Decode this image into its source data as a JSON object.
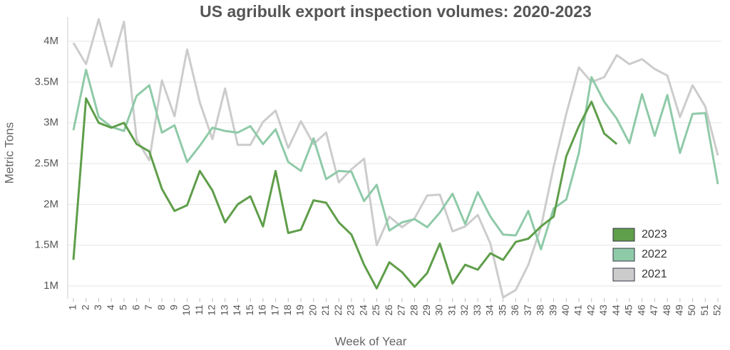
{
  "chart_data": {
    "type": "line",
    "title": "US agribulk export inspection volumes: 2020-2023",
    "x_label": "Week of Year",
    "y_label": "Metric Tons",
    "categories": [
      "1",
      "2",
      "3",
      "4",
      "5",
      "6",
      "7",
      "8",
      "9",
      "10",
      "11",
      "12",
      "13",
      "14",
      "15",
      "16",
      "17",
      "18",
      "19",
      "20",
      "21",
      "22",
      "23",
      "24",
      "25",
      "26",
      "27",
      "28",
      "29",
      "30",
      "31",
      "32",
      "33",
      "34",
      "35",
      "36",
      "37",
      "38",
      "39",
      "40",
      "41",
      "42",
      "43",
      "44",
      "45",
      "46",
      "47",
      "48",
      "49",
      "50",
      "51",
      "52"
    ],
    "series": [
      {
        "name": "2023",
        "color": "#5f9e4a",
        "values": [
          1320000,
          3300000,
          3000000,
          2940000,
          3000000,
          2740000,
          2650000,
          2190000,
          1920000,
          1990000,
          2410000,
          2170000,
          1780000,
          2000000,
          2100000,
          1730000,
          2410000,
          1650000,
          1690000,
          2050000,
          2020000,
          1780000,
          1630000,
          1260000,
          970000,
          1290000,
          1170000,
          990000,
          1160000,
          1520000,
          1030000,
          1260000,
          1200000,
          1400000,
          1320000,
          1540000,
          1580000,
          1730000,
          1850000,
          2590000,
          2960000,
          3260000,
          2870000,
          2740000,
          null,
          null,
          null,
          null,
          null,
          null,
          null,
          null
        ]
      },
      {
        "name": "2022",
        "color": "#8fcaa8",
        "values": [
          2910000,
          3650000,
          3070000,
          2950000,
          2900000,
          3330000,
          3460000,
          2880000,
          2970000,
          2520000,
          2720000,
          2940000,
          2900000,
          2880000,
          2960000,
          2740000,
          2920000,
          2520000,
          2410000,
          2810000,
          2310000,
          2410000,
          2400000,
          2040000,
          2240000,
          1680000,
          1780000,
          1820000,
          1720000,
          1900000,
          2130000,
          1760000,
          2150000,
          1850000,
          1630000,
          1620000,
          1920000,
          1450000,
          1950000,
          2060000,
          2630000,
          3560000,
          3260000,
          3050000,
          2750000,
          3350000,
          2840000,
          3340000,
          2630000,
          3110000,
          3120000,
          2250000
        ]
      },
      {
        "name": "2021",
        "color": "#cccccc",
        "values": [
          3980000,
          3720000,
          4270000,
          3690000,
          4240000,
          2800000,
          2540000,
          3520000,
          3080000,
          3900000,
          3250000,
          2800000,
          3420000,
          2730000,
          2730000,
          3010000,
          3150000,
          2690000,
          3020000,
          2740000,
          2880000,
          2270000,
          2430000,
          2560000,
          1500000,
          1850000,
          1720000,
          1830000,
          2110000,
          2120000,
          1670000,
          1730000,
          1870000,
          1520000,
          860000,
          950000,
          1260000,
          1720000,
          2460000,
          3110000,
          3680000,
          3500000,
          3560000,
          3830000,
          3720000,
          3780000,
          3660000,
          3580000,
          3070000,
          3460000,
          3200000,
          2600000
        ]
      }
    ],
    "ylim": [
      850000,
      4300000
    ],
    "yticks": [
      {
        "value": 1000000,
        "label": "1M"
      },
      {
        "value": 1500000,
        "label": "1.5M"
      },
      {
        "value": 2000000,
        "label": "2M"
      },
      {
        "value": 2500000,
        "label": "2.5M"
      },
      {
        "value": 3000000,
        "label": "3M"
      },
      {
        "value": 3500000,
        "label": "3.5M"
      },
      {
        "value": 4000000,
        "label": "4M"
      }
    ],
    "grid": true,
    "legend": "lower right"
  }
}
